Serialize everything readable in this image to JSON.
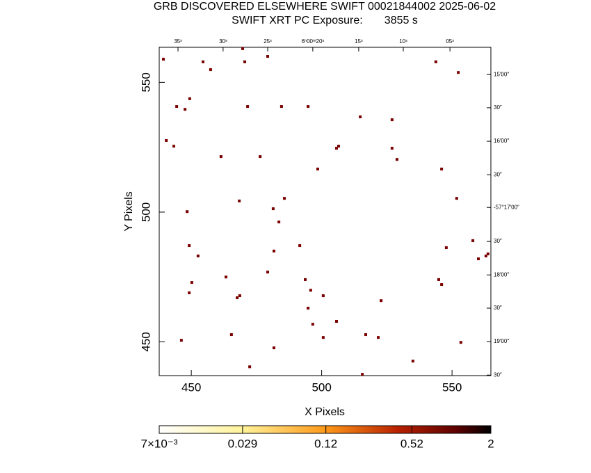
{
  "chart_data": {
    "type": "scatter",
    "title": "GRB DISCOVERED ELSEWHERE SWIFT 00021844002 2025-06-02",
    "subtitle": "SWIFT XRT PC Exposure:       3855 s",
    "xlabel": "X Pixels",
    "ylabel": "Y Pixels",
    "color": "#7a0000",
    "xlim": [
      437.7,
      564.9
    ],
    "ylim": [
      437,
      563.5
    ],
    "xticks": [
      450,
      500,
      550
    ],
    "yticks": [
      450,
      500,
      550
    ],
    "x2ticks": [
      {
        "value": 444.9,
        "label": "35ˢ"
      },
      {
        "value": 462.2,
        "label": "30ˢ"
      },
      {
        "value": 479.3,
        "label": "25ˢ"
      },
      {
        "value": 496.6,
        "label": "6ʰ00ᵐ20ˢ"
      },
      {
        "value": 514.2,
        "label": "15ˢ"
      },
      {
        "value": 531.3,
        "label": "10ˢ"
      },
      {
        "value": 549.2,
        "label": "05ˢ"
      }
    ],
    "y2ticks": [
      {
        "value": 553.0,
        "label": "15′00″"
      },
      {
        "value": 540.2,
        "label": "30″"
      },
      {
        "value": 527.3,
        "label": "16′00″"
      },
      {
        "value": 514.4,
        "label": "30″"
      },
      {
        "value": 501.8,
        "label": "-57°17′00″"
      },
      {
        "value": 488.7,
        "label": "30″"
      },
      {
        "value": 475.8,
        "label": "18′00″"
      },
      {
        "value": 463.0,
        "label": "30″"
      },
      {
        "value": 450.1,
        "label": "19′00″"
      },
      {
        "value": 437.2,
        "label": "30″"
      }
    ],
    "x": [
      439.3,
      454.5,
      457.4,
      469.7,
      470.5,
      479.3,
      543.8,
      552.4,
      444.4,
      449.4,
      447.6,
      471.6,
      484.6,
      494.8,
      514.8,
      527.0,
      440.4,
      443.3,
      506.5,
      505.7,
      527.0,
      461.4,
      476.4,
      528.9,
      498.5,
      546.0,
      468.4,
      485.7,
      481.4,
      448.4,
      551.8,
      483.6,
      449.2,
      491.6,
      481.7,
      452.6,
      547.8,
      558.0,
      560.1,
      563.8,
      563.0,
      479.3,
      463.3,
      493.7,
      544.9,
      546.0,
      450.2,
      495.8,
      449.2,
      468.6,
      467.6,
      500.6,
      522.8,
      494.8,
      496.6,
      505.7,
      465.4,
      516.9,
      521.7,
      500.6,
      446.2,
      553.4,
      481.7,
      535.0,
      472.4,
      515.6
    ],
    "values": [
      558.9,
      557.9,
      554.9,
      563.0,
      557.9,
      560.0,
      557.9,
      553.8,
      540.7,
      543.7,
      539.6,
      540.7,
      540.7,
      540.7,
      536.7,
      535.6,
      527.6,
      525.4,
      525.4,
      524.6,
      524.6,
      521.4,
      521.4,
      520.3,
      516.6,
      516.6,
      504.3,
      505.3,
      501.3,
      500.2,
      505.3,
      496.2,
      487.1,
      487.1,
      485.0,
      483.1,
      486.3,
      489.0,
      482.0,
      483.9,
      483.1,
      476.9,
      475.0,
      474.0,
      474.0,
      472.1,
      472.9,
      469.9,
      468.9,
      467.8,
      467.0,
      467.8,
      465.9,
      463.0,
      456.8,
      457.9,
      452.8,
      452.8,
      451.7,
      451.7,
      450.6,
      449.8,
      447.7,
      442.6,
      440.4,
      437.5
    ],
    "colorbar": {
      "log": true,
      "clim": [
        0.007,
        2
      ],
      "ticks": [
        {
          "value": 0.007,
          "label": "7×10⁻³"
        },
        0.029,
        0.12,
        0.52,
        2
      ]
    }
  }
}
